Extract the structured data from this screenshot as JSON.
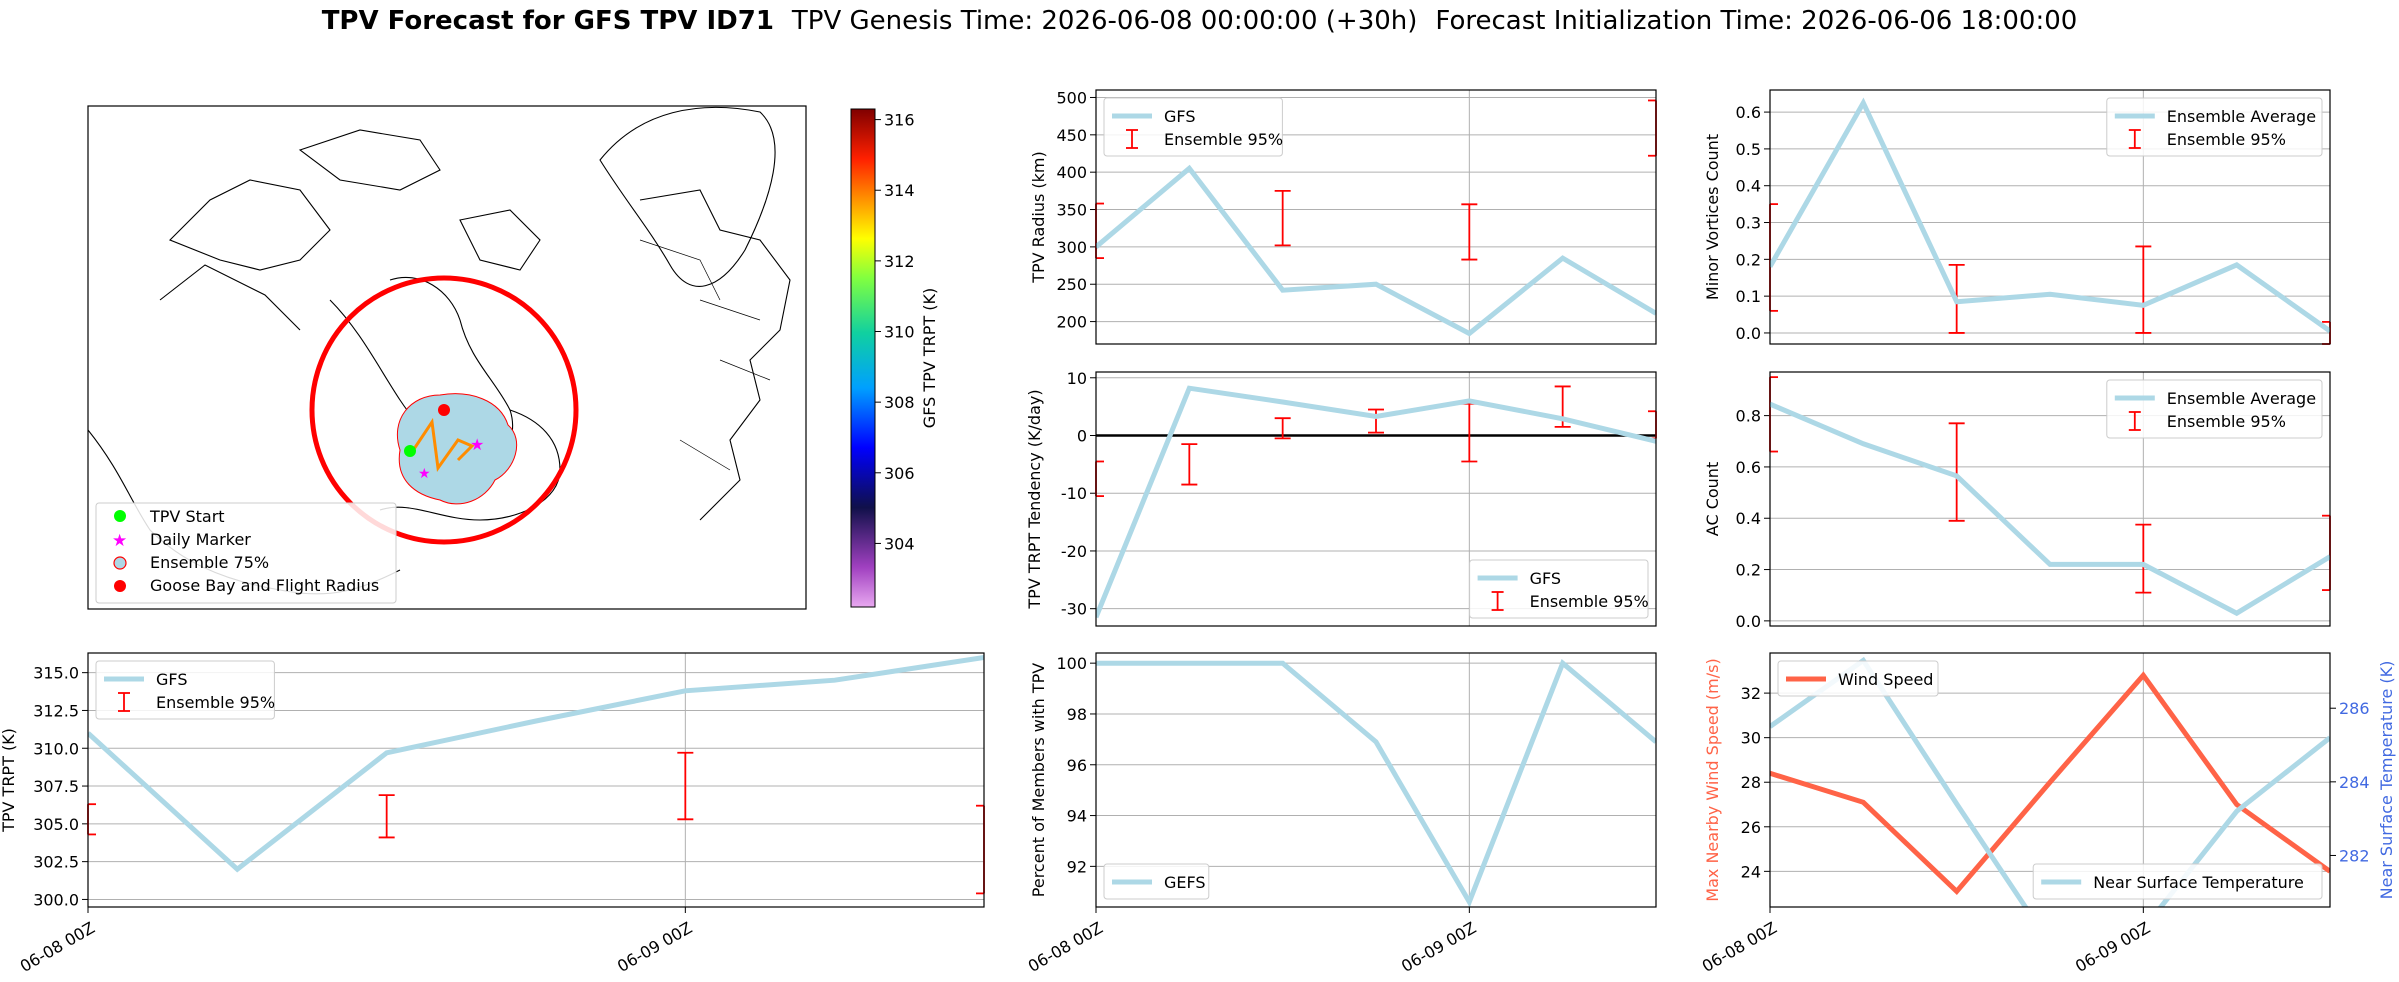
{
  "title": {
    "bold": "TPV Forecast for GFS TPV ID71",
    "genesis": "TPV Genesis Time: 2026-06-08 00:00:00 (+30h)",
    "init": "Forecast Initialization Time: 2026-06-06 18:00:00"
  },
  "colors": {
    "line": "#add8e6",
    "error": "#ff0000",
    "wind": "#ff6347",
    "temp_axis": "#4169e1",
    "start": "#00ff00",
    "marker": "#ff00ff",
    "goose": "#ff0000",
    "ensemble_fill": "#add8e6"
  },
  "map": {
    "legend": [
      "TPV Start",
      "Daily Marker",
      "Ensemble 75%",
      "Goose Bay and Flight Radius"
    ],
    "colorbar": {
      "label": "GFS TPV TRPT (K)",
      "ticks": [
        304,
        306,
        308,
        310,
        312,
        314,
        316
      ],
      "range": [
        302.2,
        316.3
      ]
    }
  },
  "chart_data": [
    {
      "id": "radius",
      "type": "line",
      "ylabel": "TPV Radius (km)",
      "ylim": [
        170,
        510
      ],
      "xlim": [
        0,
        1.5
      ],
      "yticks": [
        200,
        250,
        300,
        350,
        400,
        450,
        500
      ],
      "xticks": [],
      "xgrid": [
        1.0
      ],
      "legend": "top-left",
      "series": [
        {
          "name": "GFS",
          "x": [
            0,
            0.25,
            0.5,
            0.75,
            1.0,
            1.25,
            1.5
          ],
          "y": [
            300,
            405,
            242,
            250,
            184,
            285,
            211
          ]
        }
      ],
      "errorbars": {
        "name": "Ensemble 95%",
        "x": [
          0,
          0.5,
          1.0,
          1.5
        ],
        "low": [
          285,
          302,
          283,
          422
        ],
        "high": [
          358,
          375,
          357,
          496
        ]
      }
    },
    {
      "id": "minor",
      "type": "line",
      "ylabel": "Minor Vortices Count",
      "ylim": [
        -0.03,
        0.66
      ],
      "xlim": [
        0,
        1.5
      ],
      "yticks": [
        0.0,
        0.1,
        0.2,
        0.3,
        0.4,
        0.5,
        0.6
      ],
      "xticks": [],
      "xgrid": [
        1.0
      ],
      "legend": "top-right",
      "series": [
        {
          "name": "Ensemble Average",
          "x": [
            0,
            0.25,
            0.5,
            0.75,
            1.0,
            1.25,
            1.5
          ],
          "y": [
            0.18,
            0.625,
            0.085,
            0.105,
            0.075,
            0.185,
            0.005
          ]
        }
      ],
      "errorbars": {
        "name": "Ensemble 95%",
        "x": [
          0,
          0.5,
          1.0,
          1.5
        ],
        "low": [
          0.06,
          0.0,
          0.0,
          -0.03
        ],
        "high": [
          0.35,
          0.185,
          0.235,
          0.03
        ]
      }
    },
    {
      "id": "tendency",
      "type": "line",
      "ylabel": "TPV TRPT Tendency (K/day)",
      "ylim": [
        -33,
        11
      ],
      "xlim": [
        0,
        1.5
      ],
      "yticks": [
        -30,
        -20,
        -10,
        0,
        10
      ],
      "xticks": [],
      "xgrid": [
        1.0
      ],
      "hline": 0,
      "legend": "bottom-right",
      "series": [
        {
          "name": "GFS",
          "x": [
            0,
            0.25,
            0.5,
            0.75,
            1.0,
            1.25,
            1.5
          ],
          "y": [
            -31.5,
            8.2,
            5.8,
            3.3,
            6.0,
            2.9,
            -1.0
          ]
        }
      ],
      "errorbars": {
        "name": "Ensemble 95%",
        "x": [
          0,
          0.25,
          0.5,
          0.75,
          1.0,
          1.25,
          1.5
        ],
        "low": [
          -10.5,
          -8.5,
          -0.5,
          0.5,
          -4.5,
          1.5,
          -0.5
        ],
        "high": [
          -4.5,
          -1.5,
          3.0,
          4.5,
          5.5,
          8.5,
          4.2
        ]
      }
    },
    {
      "id": "ac",
      "type": "line",
      "ylabel": "AC Count",
      "ylim": [
        -0.02,
        0.97
      ],
      "xlim": [
        0,
        1.5
      ],
      "yticks": [
        0.0,
        0.2,
        0.4,
        0.6,
        0.8
      ],
      "xticks": [],
      "xgrid": [
        1.0
      ],
      "legend": "top-right",
      "series": [
        {
          "name": "Ensemble Average",
          "x": [
            0,
            0.25,
            0.5,
            0.75,
            1.0,
            1.25,
            1.5
          ],
          "y": [
            0.845,
            0.69,
            0.565,
            0.22,
            0.22,
            0.03,
            0.25
          ]
        }
      ],
      "errorbars": {
        "name": "Ensemble 95%",
        "x": [
          0,
          0.5,
          1.0,
          1.5
        ],
        "low": [
          0.66,
          0.39,
          0.11,
          0.12
        ],
        "high": [
          0.95,
          0.77,
          0.375,
          0.41
        ]
      }
    },
    {
      "id": "trpt",
      "type": "line",
      "ylabel": "TPV TRPT (K)",
      "ylim": [
        299.5,
        316.3
      ],
      "xlim": [
        0,
        1.5
      ],
      "yticks": [
        300.0,
        302.5,
        305.0,
        307.5,
        310.0,
        312.5,
        315.0
      ],
      "xticks": [
        {
          "x": 0,
          "label": "06-08 00Z"
        },
        {
          "x": 1.0,
          "label": "06-09 00Z"
        }
      ],
      "xgrid": [
        1.0
      ],
      "legend": "top-left",
      "series": [
        {
          "name": "GFS",
          "x": [
            0,
            0.25,
            0.5,
            0.75,
            1.0,
            1.25,
            1.5
          ],
          "y": [
            311.0,
            302.0,
            309.7,
            311.8,
            313.8,
            314.5,
            316.0
          ]
        }
      ],
      "errorbars": {
        "name": "Ensemble 95%",
        "x": [
          0,
          0.5,
          1.0,
          1.5
        ],
        "low": [
          304.3,
          304.1,
          305.3,
          300.4
        ],
        "high": [
          306.3,
          306.9,
          309.7,
          306.2
        ]
      }
    },
    {
      "id": "members",
      "type": "line",
      "ylabel": "Percent of Members with TPV",
      "ylim": [
        90.4,
        100.4
      ],
      "xlim": [
        0,
        1.5
      ],
      "yticks": [
        92,
        94,
        96,
        98,
        100
      ],
      "xticks": [
        {
          "x": 0,
          "label": "06-08 00Z"
        },
        {
          "x": 1.0,
          "label": "06-09 00Z"
        }
      ],
      "xgrid": [
        1.0
      ],
      "legend": "bottom-left",
      "series": [
        {
          "name": "GEFS",
          "x": [
            0,
            0.25,
            0.5,
            0.75,
            1.0,
            1.25,
            1.5
          ],
          "y": [
            100,
            100,
            100,
            96.9,
            90.6,
            100,
            96.9
          ]
        }
      ]
    },
    {
      "id": "wind_temp",
      "type": "line",
      "ylabel": "Max Nearby Wind Speed (m/s)",
      "ylabel_right": "Near Surface Temperature (K)",
      "ylim": [
        22.4,
        33.8
      ],
      "ylim_right": [
        280.6,
        287.5
      ],
      "xlim": [
        0,
        1.5
      ],
      "yticks": [
        24,
        26,
        28,
        30,
        32
      ],
      "yticks_right": [
        282,
        284,
        286
      ],
      "xticks": [
        {
          "x": 0,
          "label": "06-08 00Z"
        },
        {
          "x": 1.0,
          "label": "06-09 00Z"
        }
      ],
      "xgrid": [
        1.0
      ],
      "legend": "top-left",
      "legend_right": "bottom-right",
      "series": [
        {
          "name": "Wind Speed",
          "x": [
            0,
            0.25,
            0.5,
            0.75,
            1.0,
            1.25,
            1.5
          ],
          "y": [
            28.4,
            27.1,
            23.1,
            28.0,
            32.8,
            27.0,
            24.0
          ]
        },
        {
          "name": "Near Surface Temperature",
          "axis": "right",
          "x": [
            0,
            0.25,
            0.5,
            0.75,
            1.0,
            1.25,
            1.5
          ],
          "y": [
            285.5,
            287.3,
            283.4,
            279.6,
            280.0,
            283.2,
            285.2
          ]
        }
      ]
    }
  ]
}
